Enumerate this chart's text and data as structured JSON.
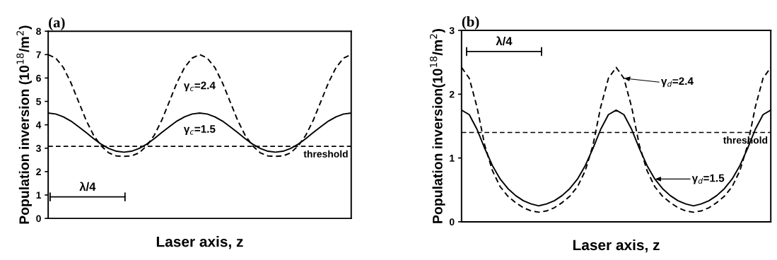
{
  "chart_data": [
    {
      "type": "line",
      "title": "(a)",
      "xlabel": "Laser axis, z",
      "ylabel": "Population inversion (10$^{18}$/m$^{2}$)",
      "categories": [
        null,
        null,
        null,
        null,
        null,
        null,
        null,
        null,
        null,
        null,
        null,
        null,
        null,
        null,
        null,
        null,
        null,
        null,
        null,
        null,
        null,
        null,
        null,
        null,
        null,
        null,
        null,
        null,
        null,
        null,
        null,
        null,
        null,
        null,
        null,
        null,
        null,
        null,
        null,
        null,
        null
      ],
      "series": [
        {
          "name": "γ$_{c}$=2.4",
          "color": "#000000",
          "line_style": "dashed",
          "values": [
            7.0,
            6.85,
            6.45,
            5.8,
            5.0,
            4.2,
            3.55,
            3.1,
            2.8,
            2.67,
            2.65,
            2.67,
            2.8,
            3.1,
            3.55,
            4.2,
            5.0,
            5.8,
            6.45,
            6.85,
            7.0,
            6.85,
            6.45,
            5.8,
            5.0,
            4.2,
            3.55,
            3.1,
            2.8,
            2.67,
            2.65,
            2.67,
            2.8,
            3.1,
            3.55,
            4.2,
            5.0,
            5.8,
            6.45,
            6.85,
            7.0
          ]
        },
        {
          "name": "γ$_{c}$=1.5",
          "color": "#000000",
          "line_style": "solid",
          "values": [
            4.5,
            4.46,
            4.34,
            4.16,
            3.92,
            3.67,
            3.41,
            3.17,
            2.99,
            2.87,
            2.83,
            2.87,
            2.99,
            3.17,
            3.41,
            3.67,
            3.92,
            4.16,
            4.34,
            4.46,
            4.5,
            4.46,
            4.34,
            4.16,
            3.92,
            3.67,
            3.41,
            3.17,
            2.99,
            2.87,
            2.83,
            2.87,
            2.99,
            3.17,
            3.41,
            3.67,
            3.92,
            4.16,
            4.34,
            4.46,
            4.5
          ]
        }
      ],
      "ylim": [
        0,
        8
      ],
      "yticks": [
        0,
        1,
        2,
        3,
        4,
        5,
        6,
        7,
        8
      ],
      "ref_lines": [
        {
          "axis": "y",
          "value": 3.08,
          "label": "threshold",
          "color": "#000000",
          "line_style": "dashed"
        }
      ],
      "annotations": [
        "λ/4"
      ]
    },
    {
      "type": "line",
      "title": "(b)",
      "xlabel": "Laser axis, z",
      "ylabel": "Population inversion(10$^{18}$/m$^{2}$)",
      "categories": [
        null,
        null,
        null,
        null,
        null,
        null,
        null,
        null,
        null,
        null,
        null,
        null,
        null,
        null,
        null,
        null,
        null,
        null,
        null,
        null,
        null,
        null,
        null,
        null,
        null,
        null,
        null,
        null,
        null,
        null,
        null,
        null,
        null,
        null,
        null,
        null,
        null,
        null,
        null,
        null,
        null
      ],
      "series": [
        {
          "name": "γ$_{d}$=2.4",
          "color": "#000000",
          "line_style": "dashed",
          "values": [
            2.42,
            2.25,
            1.8,
            1.2,
            0.8,
            0.55,
            0.4,
            0.3,
            0.22,
            0.17,
            0.15,
            0.17,
            0.22,
            0.3,
            0.4,
            0.55,
            0.8,
            1.2,
            1.8,
            2.25,
            2.42,
            2.25,
            1.8,
            1.2,
            0.8,
            0.55,
            0.4,
            0.3,
            0.22,
            0.17,
            0.15,
            0.17,
            0.22,
            0.3,
            0.4,
            0.55,
            0.8,
            1.2,
            1.8,
            2.25,
            2.42
          ]
        },
        {
          "name": "γ$_{d}$=1.5",
          "color": "#000000",
          "line_style": "solid",
          "values": [
            1.75,
            1.68,
            1.45,
            1.15,
            0.88,
            0.67,
            0.52,
            0.41,
            0.33,
            0.28,
            0.25,
            0.28,
            0.33,
            0.41,
            0.52,
            0.67,
            0.88,
            1.15,
            1.45,
            1.68,
            1.75,
            1.68,
            1.45,
            1.15,
            0.88,
            0.67,
            0.52,
            0.41,
            0.33,
            0.28,
            0.25,
            0.28,
            0.33,
            0.41,
            0.52,
            0.67,
            0.88,
            1.15,
            1.45,
            1.68,
            1.75
          ]
        }
      ],
      "ylim": [
        0,
        3
      ],
      "yticks": [
        0,
        1,
        2,
        3
      ],
      "legend": "right",
      "ref_lines": [
        {
          "axis": "y",
          "value": 1.4,
          "label": "threshold",
          "color": "#000000",
          "line_style": "dashed"
        }
      ],
      "annotations": [
        "λ/4"
      ]
    }
  ]
}
